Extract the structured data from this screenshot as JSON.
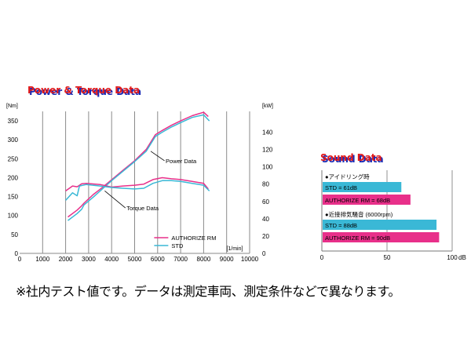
{
  "chart_data": [
    {
      "type": "line",
      "title": "Power & Torque Data",
      "x_unit": "[1/min]",
      "left_unit": "[Nm]",
      "right_unit": "[kW]",
      "xlim": [
        0,
        10000
      ],
      "x_ticks": [
        "0",
        "1000",
        "2000",
        "3000",
        "4000",
        "5000",
        "6000",
        "7000",
        "8000",
        "9000",
        "10000"
      ],
      "left_ylim": [
        0,
        375
      ],
      "left_ticks": [
        "0",
        "50",
        "100",
        "150",
        "200",
        "250",
        "300",
        "350"
      ],
      "right_ylim": [
        0,
        164
      ],
      "right_ticks": [
        "0",
        "20",
        "40",
        "60",
        "80",
        "100",
        "120",
        "140"
      ],
      "grid": true,
      "annotations": [
        "Power Data",
        "Torque Data"
      ],
      "legend": {
        "placement": "bottom-right",
        "entries": [
          "AUTHORIZE RM",
          "STD"
        ]
      },
      "series": [
        {
          "name": "AUTHORIZE RM",
          "curve": "Power Data",
          "axis": "right",
          "color": "#e8308a",
          "x": [
            2100,
            2500,
            2700,
            2800,
            3200,
            3500,
            4000,
            4500,
            5000,
            5500,
            5900,
            6200,
            6600,
            7000,
            7500,
            8000,
            8200
          ],
          "y": [
            42,
            50,
            55,
            58,
            68,
            74,
            85,
            96,
            107,
            120,
            137,
            142,
            148,
            153,
            159,
            163,
            158
          ]
        },
        {
          "name": "STD",
          "curve": "Power Data",
          "axis": "right",
          "color": "#3ab8d6",
          "x": [
            2100,
            2500,
            2700,
            2800,
            3200,
            3500,
            4000,
            4500,
            5000,
            5500,
            5900,
            6200,
            6600,
            7000,
            7500,
            8000,
            8250
          ],
          "y": [
            38,
            46,
            51,
            56,
            65,
            72,
            84,
            95,
            106,
            118,
            135,
            140,
            146,
            151,
            157,
            160,
            153
          ]
        },
        {
          "name": "AUTHORIZE RM",
          "curve": "Torque Data",
          "axis": "left",
          "color": "#e8308a",
          "x": [
            2000,
            2300,
            2500,
            2700,
            2900,
            3500,
            4000,
            4500,
            5000,
            5400,
            5800,
            6200,
            6600,
            7000,
            7500,
            8000,
            8200
          ],
          "y": [
            165,
            178,
            176,
            184,
            185,
            182,
            175,
            178,
            180,
            183,
            195,
            200,
            197,
            195,
            190,
            185,
            170
          ]
        },
        {
          "name": "STD",
          "curve": "Torque Data",
          "axis": "left",
          "color": "#3ab8d6",
          "x": [
            2000,
            2300,
            2500,
            2600,
            2900,
            3500,
            4000,
            4500,
            5000,
            5400,
            5800,
            6200,
            6600,
            7000,
            7500,
            8000,
            8250
          ],
          "y": [
            140,
            160,
            152,
            178,
            182,
            178,
            174,
            172,
            170,
            172,
            185,
            192,
            192,
            190,
            185,
            180,
            165
          ]
        }
      ]
    },
    {
      "type": "bar",
      "orientation": "horizontal",
      "title": "Sound Data",
      "xlim": [
        0,
        90
      ],
      "x_ticks": [
        "0",
        "50",
        "100"
      ],
      "x_unit": "dB",
      "grid": true,
      "groups": [
        {
          "label": "●アイドリング時",
          "bars": [
            {
              "name": "STD",
              "value": 61,
              "label": "STD = 61dB",
              "color": "#3ab8d6"
            },
            {
              "name": "AUTHORIZE RM",
              "value": 68,
              "label": "AUTHORIZE RM = 68dB",
              "color": "#e8308a"
            }
          ]
        },
        {
          "label": "●近接排気騒音 (6000rpm)",
          "bars": [
            {
              "name": "STD",
              "value": 88,
              "label": "STD = 88dB",
              "color": "#3ab8d6"
            },
            {
              "name": "AUTHORIZE RM",
              "value": 90,
              "label": "AUTHORIZE RM = 90dB",
              "color": "#e8308a"
            }
          ]
        }
      ]
    }
  ],
  "colors": {
    "title_red": "#e21a1a",
    "title_blue_shadow": "#1a2bb5",
    "grid_line": "#8a8a8a",
    "sound_grid": "#777777"
  },
  "note": "※社内テスト値です。データは測定車両、測定条件などで異なります。"
}
